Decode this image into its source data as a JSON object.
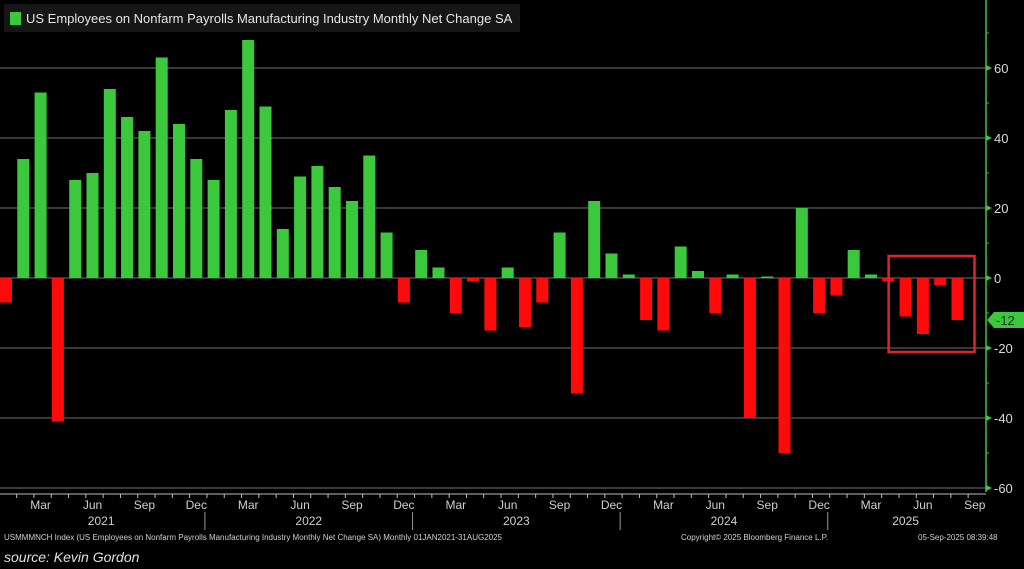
{
  "chart_data": {
    "type": "bar",
    "title": "US Employees on Nonfarm Payrolls Manufacturing Industry Monthly Net Change SA",
    "legend": [
      {
        "label": "US Employees on Nonfarm Payrolls Manufacturing Industry Monthly Net Change SA",
        "color": "#3cc83c"
      }
    ],
    "legend_position": "top-left",
    "positive_color": "#3cc83c",
    "negative_color": "#ff0a0a",
    "categories": [
      "Jan-21",
      "Feb-21",
      "Mar-21",
      "Apr-21",
      "May-21",
      "Jun-21",
      "Jul-21",
      "Aug-21",
      "Sep-21",
      "Oct-21",
      "Nov-21",
      "Dec-21",
      "Jan-22",
      "Feb-22",
      "Mar-22",
      "Apr-22",
      "May-22",
      "Jun-22",
      "Jul-22",
      "Aug-22",
      "Sep-22",
      "Oct-22",
      "Nov-22",
      "Dec-22",
      "Jan-23",
      "Feb-23",
      "Mar-23",
      "Apr-23",
      "May-23",
      "Jun-23",
      "Jul-23",
      "Aug-23",
      "Sep-23",
      "Oct-23",
      "Nov-23",
      "Dec-23",
      "Jan-24",
      "Feb-24",
      "Mar-24",
      "Apr-24",
      "May-24",
      "Jun-24",
      "Jul-24",
      "Aug-24",
      "Sep-24",
      "Oct-24",
      "Nov-24",
      "Dec-24",
      "Jan-25",
      "Feb-25",
      "Mar-25",
      "Apr-25",
      "May-25",
      "Jun-25",
      "Jul-25",
      "Aug-25"
    ],
    "values": [
      -7,
      34,
      53,
      -41,
      28,
      30,
      54,
      46,
      42,
      63,
      44,
      34,
      28,
      48,
      68,
      49,
      14,
      29,
      32,
      26,
      22,
      35,
      13,
      -7,
      8,
      3,
      -10,
      -1,
      -15,
      3,
      -14,
      -7,
      13,
      -33,
      22,
      7,
      1,
      -12,
      -15,
      9,
      2,
      -10,
      1,
      -40,
      0,
      -50,
      20,
      -10,
      -5,
      8,
      1,
      -1,
      -11,
      -16,
      -2,
      -12
    ],
    "ylim": [
      -60,
      70
    ],
    "yticks": [
      60,
      40,
      20,
      0,
      -20,
      -40,
      -60
    ],
    "ytick_labels": [
      "60",
      "40",
      "20",
      "0",
      "-20",
      "-40",
      "-60"
    ],
    "y_axis_side": "right",
    "grid": true,
    "xtick_labels": [
      {
        "label": "Mar",
        "index": 2
      },
      {
        "label": "Jun",
        "index": 5
      },
      {
        "label": "Sep",
        "index": 8
      },
      {
        "label": "Dec",
        "index": 11
      },
      {
        "label": "Mar",
        "index": 14
      },
      {
        "label": "Jun",
        "index": 17
      },
      {
        "label": "Sep",
        "index": 20
      },
      {
        "label": "Dec",
        "index": 23
      },
      {
        "label": "Mar",
        "index": 26
      },
      {
        "label": "Jun",
        "index": 29
      },
      {
        "label": "Sep",
        "index": 32
      },
      {
        "label": "Dec",
        "index": 35
      },
      {
        "label": "Mar",
        "index": 38
      },
      {
        "label": "Jun",
        "index": 41
      },
      {
        "label": "Sep",
        "index": 44
      },
      {
        "label": "Dec",
        "index": 47
      },
      {
        "label": "Mar",
        "index": 50
      },
      {
        "label": "Jun",
        "index": 53
      },
      {
        "label": "Sep",
        "index": 56
      }
    ],
    "year_labels": [
      {
        "label": "2021",
        "index": 5.5
      },
      {
        "label": "2022",
        "index": 17.5
      },
      {
        "label": "2023",
        "index": 29.5
      },
      {
        "label": "2024",
        "index": 41.5
      },
      {
        "label": "2025",
        "index": 52
      }
    ],
    "year_separators": [
      11.5,
      23.5,
      35.5,
      47.5
    ],
    "last_value_label": "-12",
    "last_value": -12,
    "highlight_box": {
      "from_index": 52,
      "to_index": 55,
      "color": "#e0242c"
    },
    "xlabel": "",
    "ylabel": ""
  },
  "footer": {
    "index_desc": "USMMMNCH Index (US Employees on Nonfarm Payrolls Manufacturing Industry Monthly Net Change SA)  Monthly 01JAN2021-31AUG2025",
    "copyright": "Copyright© 2025 Bloomberg Finance L.P.",
    "timestamp": "05-Sep-2025 08:39:48",
    "source": "source: Kevin Gordon"
  }
}
